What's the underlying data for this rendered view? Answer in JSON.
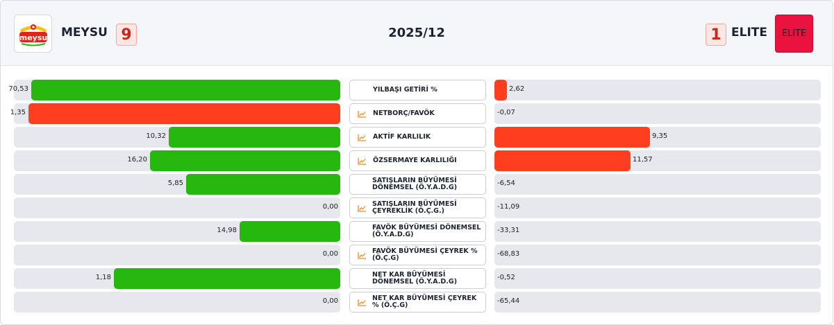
{
  "header": {
    "left_team": {
      "name": "MEYSU",
      "score": "9",
      "logo_text": "meysu"
    },
    "right_team": {
      "name": "ELITE",
      "score": "1",
      "logo_text": "ELITE"
    },
    "period": "2025/12"
  },
  "colors": {
    "green": "#27b80f",
    "red": "#ff3d1f",
    "track": "#e6e8ee",
    "icon": "#f08a24"
  },
  "metrics": [
    {
      "label": "YILBAŞI GETİRİ %",
      "icon": "none",
      "left": {
        "value": "70,53",
        "fraction": 0.946,
        "color": "green"
      },
      "right": {
        "value": "2,62",
        "fraction": 0.038,
        "color": "red"
      }
    },
    {
      "label": "NETBORÇ/FAVÖK",
      "icon": "chart-line-icon",
      "left": {
        "value": "1,35",
        "fraction": 0.955,
        "color": "red"
      },
      "right": {
        "value": "-0,07",
        "fraction": 0,
        "color": "red"
      }
    },
    {
      "label": "AKTİF KARLILIK",
      "icon": "chart-line-icon",
      "left": {
        "value": "10,32",
        "fraction": 0.526,
        "color": "green"
      },
      "right": {
        "value": "9,35",
        "fraction": 0.477,
        "color": "red"
      }
    },
    {
      "label": "ÖZSERMAYE KARLILIĞI",
      "icon": "chart-line-icon",
      "left": {
        "value": "16,20",
        "fraction": 0.583,
        "color": "green"
      },
      "right": {
        "value": "11,57",
        "fraction": 0.417,
        "color": "red"
      }
    },
    {
      "label": "SATIŞLARIN BÜYÜMESİ DÖNEMSEL (Ö.Y.A.D.G)",
      "icon": "none",
      "left": {
        "value": "5,85",
        "fraction": 0.472,
        "color": "green"
      },
      "right": {
        "value": "-6,54",
        "fraction": 0,
        "color": "red"
      }
    },
    {
      "label": "SATIŞLARIN BÜYÜMESİ ÇEYREKLİK (Ö.Ç.G.)",
      "icon": "chart-line-icon",
      "left": {
        "value": "0,00",
        "fraction": 0,
        "color": "green"
      },
      "right": {
        "value": "-11,09",
        "fraction": 0,
        "color": "red"
      }
    },
    {
      "label": "FAVÖK BÜYÜMESİ DÖNEMSEL (Ö.Y.A.D.G)",
      "icon": "none",
      "left": {
        "value": "14,98",
        "fraction": 0.309,
        "color": "green"
      },
      "right": {
        "value": "-33,31",
        "fraction": 0,
        "color": "red"
      }
    },
    {
      "label": "FAVÖK BÜYÜMESİ ÇEYREK % (Ö.Ç.G)",
      "icon": "chart-line-icon",
      "left": {
        "value": "0,00",
        "fraction": 0,
        "color": "green"
      },
      "right": {
        "value": "-68,83",
        "fraction": 0,
        "color": "red"
      }
    },
    {
      "label": "NET KAR BÜYÜMESİ DÖNEMSEL (Ö.Y.A.D.G)",
      "icon": "none",
      "left": {
        "value": "1,18",
        "fraction": 0.694,
        "color": "green"
      },
      "right": {
        "value": "-0,52",
        "fraction": 0,
        "color": "red"
      }
    },
    {
      "label": "NET KAR BÜYÜMESİ ÇEYREK % (Ö.Ç.G)",
      "icon": "chart-line-icon",
      "left": {
        "value": "0,00",
        "fraction": 0,
        "color": "green"
      },
      "right": {
        "value": "-65,44",
        "fraction": 0,
        "color": "red"
      }
    }
  ]
}
